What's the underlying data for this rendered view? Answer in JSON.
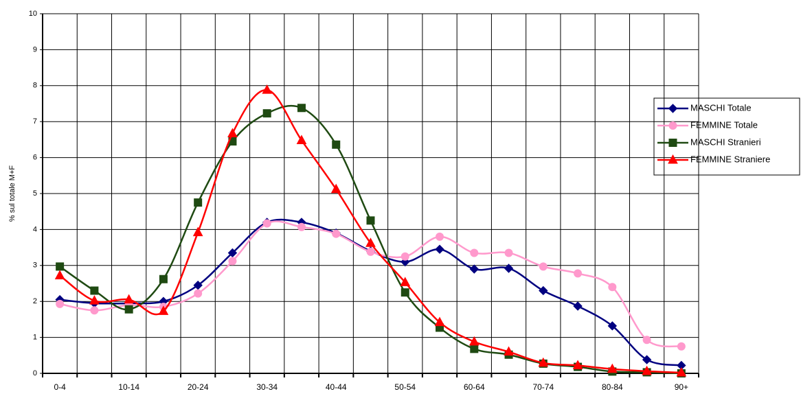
{
  "chart_data": {
    "type": "line",
    "ylabel": "% sul totale M+F",
    "categories": [
      "0-4",
      null,
      "10-14",
      null,
      "20-24",
      null,
      "30-34",
      null,
      "40-44",
      null,
      "50-54",
      null,
      "60-64",
      null,
      "70-74",
      null,
      "80-84",
      null,
      "90+"
    ],
    "ylim": [
      0,
      10
    ],
    "yticks": [
      0,
      1,
      2,
      3,
      4,
      5,
      6,
      7,
      8,
      9,
      10
    ],
    "grid": true,
    "legend": "right",
    "series": [
      {
        "name": "MASCHI Totale",
        "color": "#000080",
        "marker": "diamond",
        "values": [
          2.05,
          1.95,
          1.95,
          2.0,
          2.45,
          3.35,
          4.2,
          4.2,
          3.9,
          3.4,
          3.1,
          3.45,
          2.9,
          2.92,
          2.3,
          1.87,
          1.32,
          0.38,
          0.22
        ]
      },
      {
        "name": "FEMMINE Totale",
        "color": "#ff99cc",
        "marker": "circle",
        "values": [
          1.93,
          1.75,
          1.9,
          1.85,
          2.22,
          3.12,
          4.17,
          4.07,
          3.88,
          3.38,
          3.25,
          3.8,
          3.35,
          3.35,
          2.97,
          2.78,
          2.4,
          0.93,
          0.75
        ]
      },
      {
        "name": "MASCHI Stranieri",
        "color": "#1f4a12",
        "marker": "square",
        "values": [
          2.97,
          2.3,
          1.78,
          2.62,
          4.75,
          6.45,
          7.23,
          7.38,
          6.36,
          4.25,
          2.25,
          1.27,
          0.68,
          0.52,
          0.27,
          0.18,
          0.05,
          0.03,
          0.0
        ]
      },
      {
        "name": "FEMMINE Straniere",
        "color": "#ff0000",
        "marker": "triangle",
        "values": [
          2.72,
          2.02,
          2.05,
          1.73,
          3.92,
          6.67,
          7.88,
          6.48,
          5.12,
          3.62,
          2.53,
          1.42,
          0.88,
          0.6,
          0.29,
          0.22,
          0.12,
          0.06,
          0.02
        ]
      }
    ]
  }
}
